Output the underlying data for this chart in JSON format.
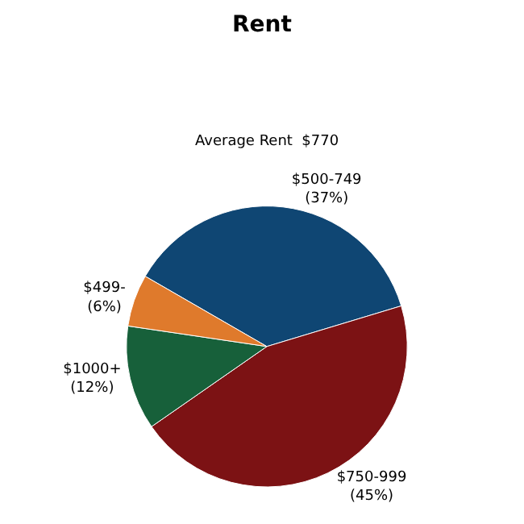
{
  "chart_data": {
    "type": "pie",
    "title": "Rent",
    "subtitle": "Average Rent  $770",
    "categories": [
      "$500-749",
      "$750-999",
      "$1000+",
      "$499-"
    ],
    "values": [
      37,
      45,
      12,
      6
    ],
    "value_labels": [
      "(37%)",
      "(45%)",
      "(12%)",
      "(6%)"
    ],
    "colors": [
      "#0f4673",
      "#7c1214",
      "#17603a",
      "#df7a2c"
    ],
    "legend": false
  }
}
